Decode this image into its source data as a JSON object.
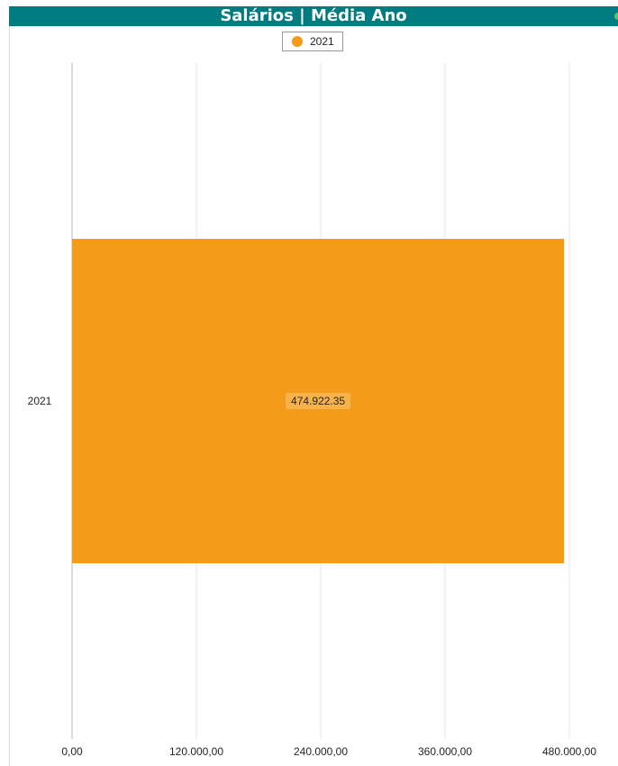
{
  "title": "Salários | Média Ano",
  "colors": {
    "header": "#007c80",
    "bar": "#f59b1c",
    "status_dot": "#5cc46a"
  },
  "legend": {
    "position": "top-center",
    "items": [
      {
        "label": "2021",
        "color": "#f59b1c"
      }
    ]
  },
  "chart_data": {
    "type": "bar",
    "orientation": "horizontal",
    "title": "Salários | Média Ano",
    "categories": [
      "2021"
    ],
    "series": [
      {
        "name": "2021",
        "values": [
          474922.35
        ],
        "color": "#f59b1c"
      }
    ],
    "data_labels": [
      "474.922.35"
    ],
    "x_ticks": [
      0,
      120000,
      240000,
      360000,
      480000
    ],
    "x_tick_labels": [
      "0,00",
      "120.000,00",
      "240.000,00",
      "360.000,00",
      "480.000,00"
    ],
    "xlim": [
      0,
      480000
    ],
    "grid": {
      "vertical": true,
      "horizontal": false
    },
    "xlabel": "",
    "ylabel": ""
  }
}
